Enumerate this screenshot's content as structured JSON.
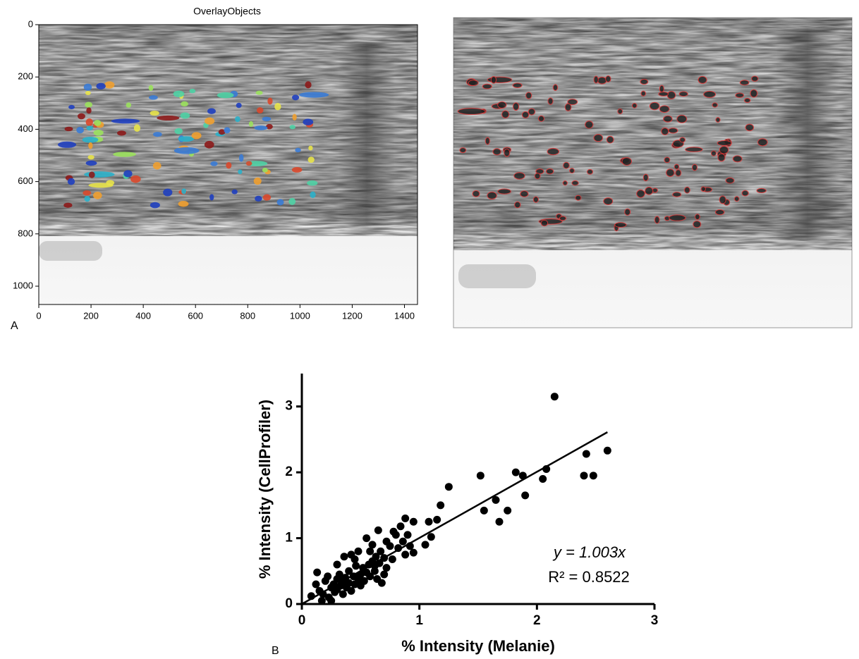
{
  "chart_data": [
    {
      "type": "image",
      "title": "OverlayObjects",
      "panel_label": "A",
      "xlim": [
        0,
        1450
      ],
      "ylim": [
        1070,
        0
      ],
      "xticks": [
        0,
        200,
        400,
        600,
        800,
        1000,
        1200,
        1400
      ],
      "yticks": [
        0,
        200,
        400,
        600,
        800,
        1000
      ]
    },
    {
      "type": "scatter",
      "panel_label": "B",
      "x_label": "% Intensity (Melanie)",
      "y_label": "% Intensity (CellProfiler)",
      "color": "#000000",
      "x": [
        0.08,
        0.12,
        0.13,
        0.15,
        0.17,
        0.18,
        0.2,
        0.22,
        0.23,
        0.25,
        0.25,
        0.27,
        0.28,
        0.3,
        0.3,
        0.32,
        0.33,
        0.35,
        0.35,
        0.36,
        0.37,
        0.38,
        0.4,
        0.4,
        0.42,
        0.42,
        0.44,
        0.45,
        0.46,
        0.48,
        0.48,
        0.5,
        0.5,
        0.52,
        0.53,
        0.55,
        0.55,
        0.57,
        0.58,
        0.6,
        0.6,
        0.62,
        0.63,
        0.64,
        0.65,
        0.66,
        0.67,
        0.68,
        0.7,
        0.72,
        0.72,
        0.75,
        0.77,
        0.8,
        0.82,
        0.84,
        0.86,
        0.88,
        0.88,
        0.9,
        0.92,
        0.95,
        0.95,
        1.05,
        1.08,
        1.1,
        1.15,
        1.18,
        1.25,
        1.52,
        1.55,
        1.65,
        1.68,
        1.75,
        1.82,
        1.88,
        1.9,
        2.05,
        2.08,
        2.15,
        2.4,
        2.42,
        2.48,
        2.6,
        0.3,
        0.45,
        0.58,
        0.78,
        0.62,
        0.7
      ],
      "y": [
        0.12,
        0.3,
        0.48,
        0.2,
        0.05,
        0.15,
        0.35,
        0.42,
        0.1,
        0.25,
        0.05,
        0.3,
        0.18,
        0.38,
        0.22,
        0.45,
        0.28,
        0.35,
        0.15,
        0.72,
        0.4,
        0.25,
        0.5,
        0.32,
        0.75,
        0.2,
        0.42,
        0.3,
        0.58,
        0.38,
        0.8,
        0.45,
        0.28,
        0.55,
        0.35,
        1.0,
        0.48,
        0.6,
        0.42,
        0.65,
        0.9,
        0.5,
        0.72,
        0.38,
        1.12,
        0.62,
        0.8,
        0.32,
        0.7,
        0.95,
        0.55,
        0.88,
        0.68,
        1.05,
        0.85,
        1.18,
        0.95,
        1.3,
        0.75,
        1.05,
        0.88,
        0.78,
        1.25,
        0.9,
        1.25,
        1.02,
        1.28,
        1.5,
        1.78,
        1.95,
        1.42,
        1.58,
        1.25,
        1.42,
        2.0,
        1.95,
        1.65,
        1.9,
        2.05,
        3.15,
        1.95,
        2.28,
        1.95,
        2.33,
        0.6,
        0.68,
        0.8,
        1.1,
        0.58,
        0.45
      ],
      "fit_line": {
        "x": [
          0,
          2.6
        ],
        "y": [
          0,
          2.61
        ]
      },
      "annotations": [
        "y = 1.003x",
        "R² = 0.8522"
      ],
      "xlim": [
        0,
        3
      ],
      "ylim": [
        0,
        3.5
      ],
      "xticks": [
        0,
        1,
        2,
        3
      ],
      "yticks": [
        0,
        1,
        2,
        3
      ]
    }
  ]
}
